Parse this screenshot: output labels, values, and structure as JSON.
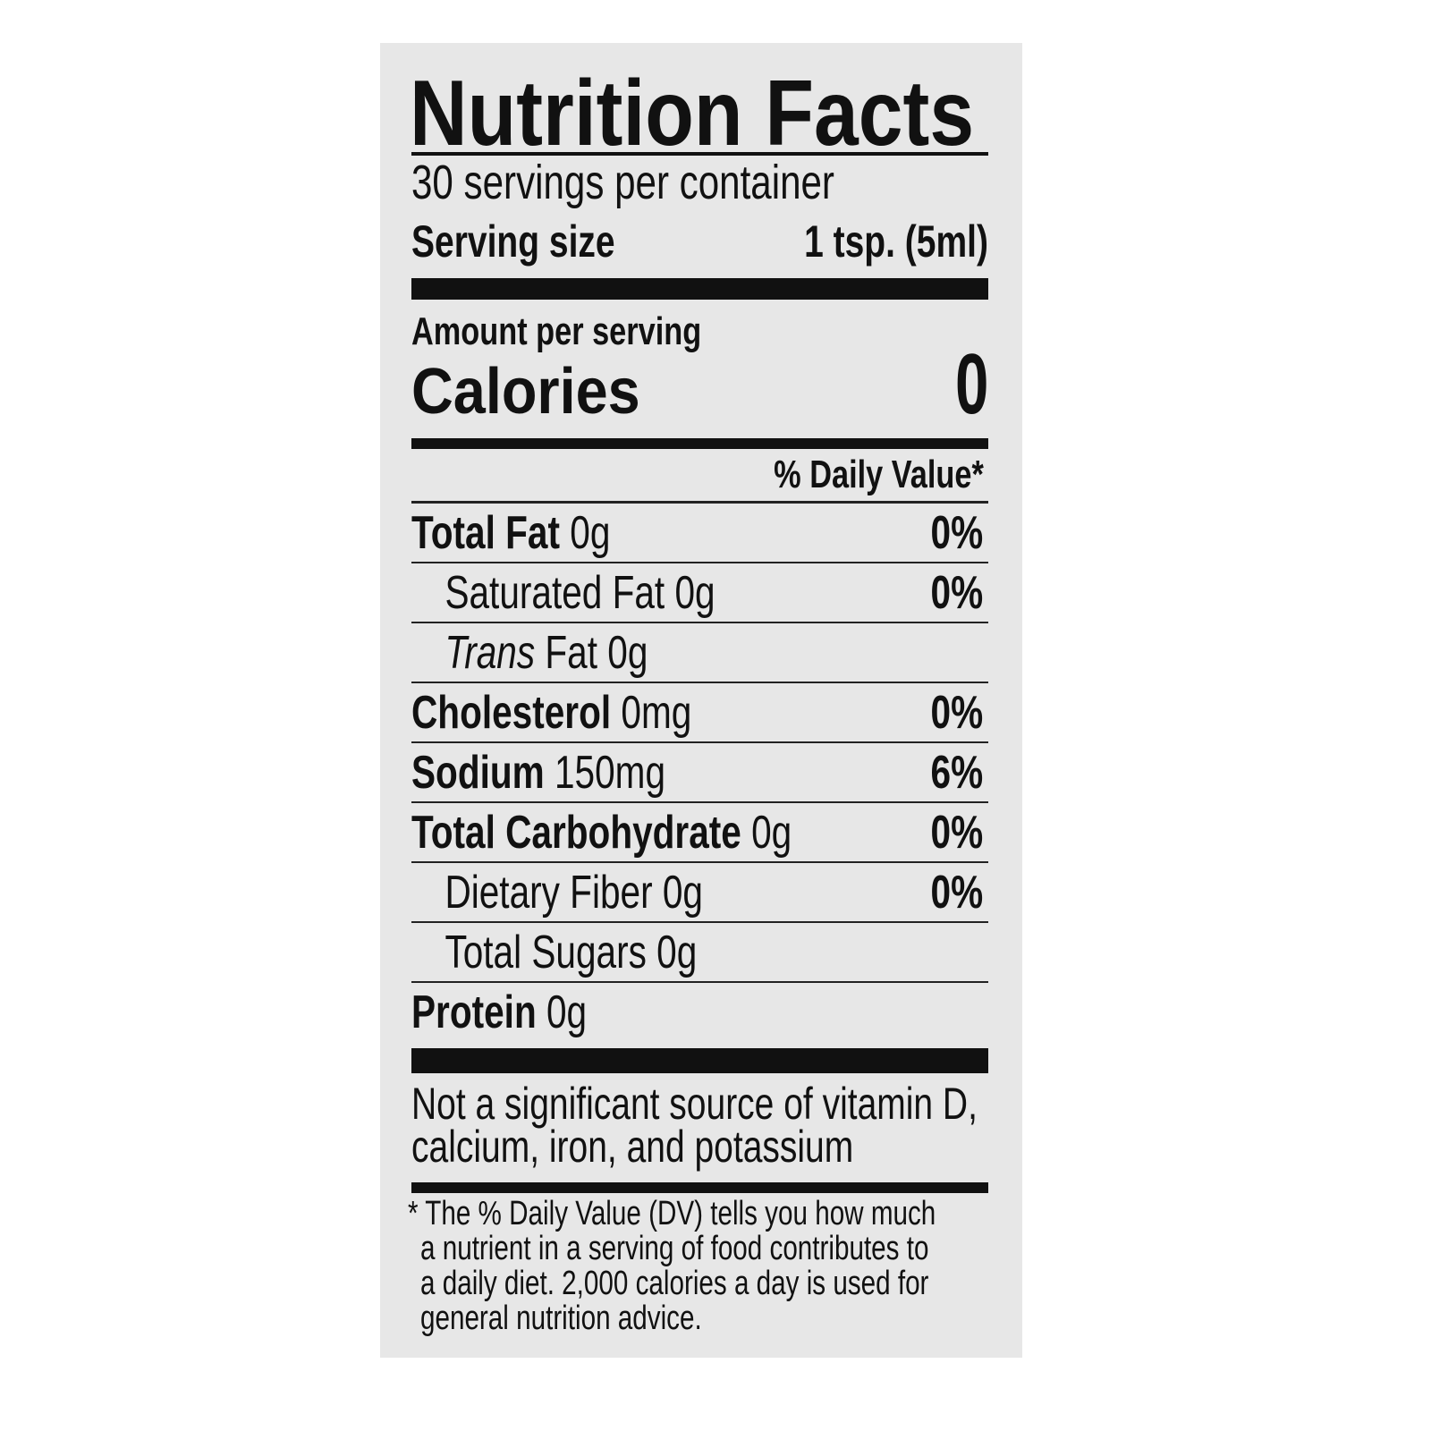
{
  "title": "Nutrition Facts",
  "servings_per_container": "30 servings per container",
  "serving_size": {
    "label": "Serving size",
    "value": "1 tsp. (5ml)"
  },
  "amount_per_serving": "Amount per serving",
  "calories": {
    "label": "Calories",
    "value": "0"
  },
  "daily_value_header": "% Daily Value*",
  "nutrients": [
    {
      "name": "Total Fat",
      "amount": "0g",
      "dv": "0%"
    },
    {
      "name": "Saturated Fat",
      "amount": "0g",
      "dv": "0%"
    },
    {
      "name_italic": "Trans",
      "name": "Fat",
      "amount": "0g"
    },
    {
      "name": "Cholesterol",
      "amount": "0mg",
      "dv": "0%"
    },
    {
      "name": "Sodium",
      "amount": "150mg",
      "dv": "6%"
    },
    {
      "name": "Total Carbohydrate",
      "amount": "0g",
      "dv": "0%"
    },
    {
      "name": "Dietary Fiber",
      "amount": "0g",
      "dv": "0%"
    },
    {
      "name": "Total Sugars",
      "amount": "0g"
    },
    {
      "name": "Protein",
      "amount": "0g"
    }
  ],
  "not_significant": [
    "Not a significant source of vitamin D,",
    "calcium, iron, and potassium"
  ],
  "footnote": [
    "* The % Daily Value (DV) tells you how much",
    "a nutrient in a serving of food contributes to",
    "a daily diet. 2,000 calories a day is used for",
    "general nutrition advice."
  ]
}
